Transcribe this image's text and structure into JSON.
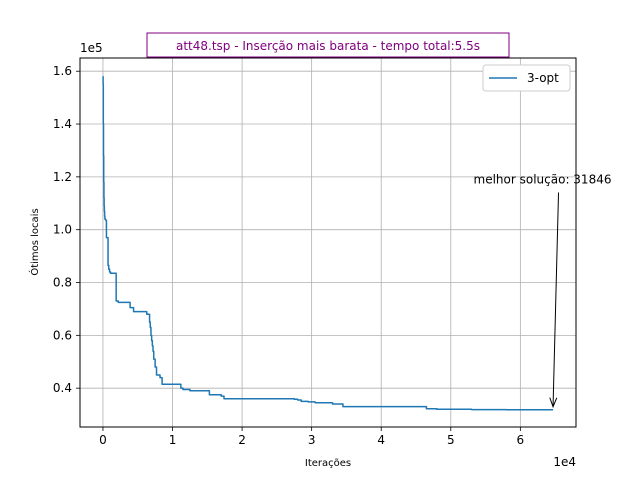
{
  "chart_data": {
    "type": "line",
    "title": "att48.tsp - Inserção mais barata - tempo total:5.5s",
    "xlabel": "Iterações",
    "ylabel": "Ótimos locais",
    "x_offset_label": "1e4",
    "y_offset_label": "1e5",
    "xlim": [
      -3300,
      68000
    ],
    "ylim": [
      25300,
      165000
    ],
    "x_ticks": [
      0,
      10000,
      20000,
      30000,
      40000,
      50000,
      60000
    ],
    "x_tick_labels": [
      "0",
      "1",
      "2",
      "3",
      "4",
      "5",
      "6"
    ],
    "y_ticks": [
      40000,
      60000,
      80000,
      100000,
      120000,
      140000,
      160000
    ],
    "y_tick_labels": [
      "0.4",
      "0.6",
      "0.8",
      "1.0",
      "1.2",
      "1.4",
      "1.6"
    ],
    "grid": true,
    "legend": {
      "placement": "top-right"
    },
    "colors": {
      "series": "#1f77b4",
      "title": "#800080",
      "grid": "#b0b0b0",
      "axis": "#000000"
    },
    "annotation": {
      "text": "melhor solução: 31846",
      "point": [
        64700,
        31846
      ],
      "text_anchor": [
        65200,
        119000
      ]
    },
    "series": [
      {
        "name": "3-opt",
        "step": true,
        "x": [
          0,
          20,
          50,
          80,
          110,
          140,
          170,
          200,
          240,
          280,
          330,
          380,
          430,
          500,
          570,
          650,
          730,
          830,
          950,
          1100,
          1300,
          1600,
          1900,
          2200,
          2600,
          3000,
          3400,
          3900,
          4400,
          5000,
          5600,
          6300,
          6700,
          6800,
          6900,
          7000,
          7100,
          7200,
          7300,
          7500,
          7700,
          8200,
          8500,
          8700,
          9000,
          9500,
          10000,
          11200,
          11500,
          12500,
          13000,
          14500,
          15300,
          17000,
          17400,
          20000,
          23000,
          25500,
          26500,
          27500,
          28000,
          28500,
          29500,
          30500,
          32000,
          33000,
          34500,
          36000,
          38000,
          40000,
          42000,
          44000,
          46500,
          48000,
          50000,
          53000,
          56000,
          58000,
          60000,
          62000,
          64700
        ],
        "y": [
          158000,
          155000,
          140000,
          128000,
          118000,
          112000,
          109000,
          107000,
          105000,
          104000,
          104000,
          103800,
          103500,
          97000,
          97000,
          97000,
          86500,
          85000,
          84000,
          83500,
          83500,
          83500,
          73000,
          72500,
          72500,
          72500,
          72500,
          70500,
          69000,
          69000,
          69000,
          68000,
          65000,
          63000,
          60000,
          58000,
          56000,
          54000,
          51000,
          48000,
          45000,
          44000,
          41500,
          41500,
          41500,
          41500,
          41500,
          40000,
          39500,
          39000,
          39000,
          39000,
          37500,
          37000,
          36000,
          36000,
          36000,
          36000,
          36000,
          35800,
          35500,
          35000,
          34800,
          34500,
          34500,
          34000,
          33000,
          33000,
          33000,
          33000,
          33000,
          33000,
          32200,
          32000,
          32000,
          31900,
          31900,
          31850,
          31846,
          31846,
          31846
        ]
      }
    ]
  }
}
